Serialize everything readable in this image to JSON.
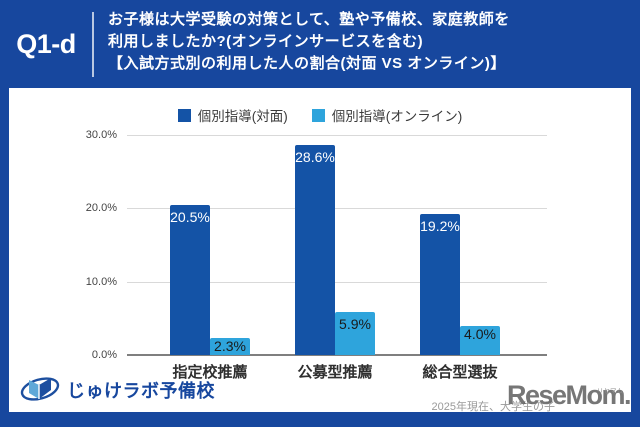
{
  "header": {
    "question_id": "Q1-d",
    "title_lines": [
      "お子様は大学受験の対策として、塾や予備校、家庭教師を",
      "利用しましたか?(オンラインサービスを含む)",
      "【入試方式別の利用した人の割合(対面 VS オンライン)】"
    ]
  },
  "chart_data": {
    "type": "bar",
    "categories": [
      "指定校推薦",
      "公募型推薦",
      "総合型選抜"
    ],
    "series": [
      {
        "name": "個別指導(対面)",
        "color": "#1453A6",
        "label_color": "#ffffff",
        "values": [
          20.5,
          28.6,
          19.2
        ]
      },
      {
        "name": "個別指導(オンライン)",
        "color": "#2EA4DC",
        "label_color": "#1a1a1a",
        "values": [
          2.3,
          5.9,
          4.0
        ]
      }
    ],
    "value_suffix": "%",
    "ylim": [
      0,
      30
    ],
    "yticks": [
      0,
      10,
      20,
      30
    ],
    "ytick_labels": [
      "0.0%",
      "10.0%",
      "20.0%",
      "30.0%"
    ],
    "grid": true,
    "legend_position": "top",
    "title": "",
    "xlabel": "",
    "ylabel": ""
  },
  "footer": {
    "brand": "じゅけラボ予備校",
    "caption": "2025年現在、大学生の子",
    "watermark": "ReseMom.",
    "watermark_furigana": "リセマム"
  },
  "colors": {
    "background_blue": "#17479E",
    "panel_white": "#ffffff",
    "series_face_to_face": "#1453A6",
    "series_online": "#2EA4DC",
    "gridline": "#d9d9d9",
    "axis_line": "#7f7f7f"
  }
}
